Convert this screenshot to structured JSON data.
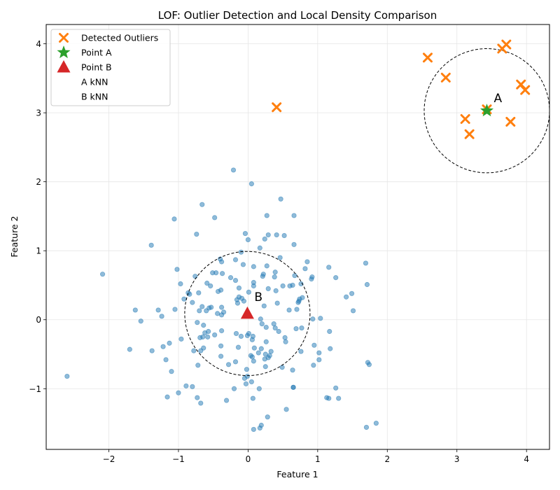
{
  "chart_data": {
    "type": "scatter",
    "title": "LOF: Outlier Detection and Local Density Comparison",
    "xlabel": "Feature 1",
    "ylabel": "Feature 2",
    "xlim": [
      -2.9,
      4.33
    ],
    "ylim": [
      -1.88,
      4.28
    ],
    "xticks": [
      -2,
      -1,
      0,
      1,
      2,
      3,
      4
    ],
    "yticks": [
      -1,
      0,
      1,
      2,
      3,
      4
    ],
    "xtick_labels": [
      "−2",
      "−1",
      "0",
      "1",
      "2",
      "3",
      "4"
    ],
    "ytick_labels": [
      "−1",
      "0",
      "1",
      "2",
      "3",
      "4"
    ],
    "grid": true,
    "legend": {
      "placement": "top-left",
      "entries": [
        {
          "label": "Detected Outliers",
          "marker": "x",
          "color": "#ff7f0e"
        },
        {
          "label": "Point A",
          "marker": "star",
          "color": "#2ca02c"
        },
        {
          "label": "Point B",
          "marker": "triangle",
          "color": "#d62728"
        },
        {
          "label": "A kNN",
          "marker": "none",
          "color": "#000000"
        },
        {
          "label": "B kNN",
          "marker": "none",
          "color": "#000000"
        }
      ]
    },
    "colors": {
      "inliers": "#1f77b4",
      "outliers": "#ff7f0e",
      "point_a": "#2ca02c",
      "point_b": "#d62728",
      "knn_circle": "#000000"
    },
    "point_a": {
      "x": 3.43,
      "y": 3.03,
      "label": "A"
    },
    "point_b": {
      "x": -0.01,
      "y": 0.09,
      "label": "B"
    },
    "knn_circles": [
      {
        "name": "A kNN",
        "cx": 3.43,
        "cy": 3.03,
        "r": 0.9
      },
      {
        "name": "B kNN",
        "cx": -0.01,
        "cy": 0.09,
        "r": 0.9
      }
    ],
    "outliers": [
      [
        0.41,
        3.08
      ],
      [
        2.58,
        3.8
      ],
      [
        2.84,
        3.51
      ],
      [
        3.12,
        2.91
      ],
      [
        3.18,
        2.69
      ],
      [
        3.43,
        3.05
      ],
      [
        3.65,
        3.93
      ],
      [
        3.71,
        3.99
      ],
      [
        3.77,
        2.87
      ],
      [
        3.92,
        3.41
      ],
      [
        3.98,
        3.33
      ]
    ],
    "inliers": [
      [
        -2.6,
        -0.82
      ],
      [
        -2.09,
        0.66
      ],
      [
        -1.7,
        -0.43
      ],
      [
        -1.62,
        0.14
      ],
      [
        -1.54,
        -0.02
      ],
      [
        -1.39,
        1.08
      ],
      [
        -1.38,
        -0.45
      ],
      [
        -1.29,
        0.14
      ],
      [
        -1.24,
        0.05
      ],
      [
        -1.22,
        -0.39
      ],
      [
        -1.18,
        -0.58
      ],
      [
        -1.16,
        -1.12
      ],
      [
        -1.13,
        -0.34
      ],
      [
        -1.1,
        -0.75
      ],
      [
        -1.06,
        1.46
      ],
      [
        -1.05,
        0.15
      ],
      [
        -1.02,
        0.73
      ],
      [
        -1.0,
        -1.06
      ],
      [
        -0.97,
        0.52
      ],
      [
        -0.96,
        -0.28
      ],
      [
        -0.92,
        0.3
      ],
      [
        -0.89,
        -0.96
      ],
      [
        -0.86,
        0.39
      ],
      [
        -0.84,
        0.37
      ],
      [
        -0.8,
        -0.97
      ],
      [
        -0.8,
        0.25
      ],
      [
        -0.78,
        -0.45
      ],
      [
        -0.76,
        0.63
      ],
      [
        -0.74,
        1.24
      ],
      [
        -0.73,
        -1.13
      ],
      [
        -0.73,
        -0.04
      ],
      [
        -0.72,
        -0.66
      ],
      [
        -0.71,
        0.39
      ],
      [
        -0.7,
        0.13
      ],
      [
        -0.69,
        -0.26
      ],
      [
        -0.68,
        -0.45
      ],
      [
        -0.68,
        -1.21
      ],
      [
        -0.66,
        1.67
      ],
      [
        -0.66,
        0.19
      ],
      [
        -0.65,
        -0.25
      ],
      [
        -0.64,
        -0.41
      ],
      [
        -0.64,
        -0.08
      ],
      [
        -0.62,
        -0.19
      ],
      [
        -0.6,
        0.13
      ],
      [
        -0.59,
        0.53
      ],
      [
        -0.58,
        -0.25
      ],
      [
        -0.57,
        -0.17
      ],
      [
        -0.56,
        0.17
      ],
      [
        -0.54,
        0.49
      ],
      [
        -0.53,
        0.18
      ],
      [
        -0.51,
        0.68
      ],
      [
        -0.48,
        1.48
      ],
      [
        -0.48,
        -0.22
      ],
      [
        -0.46,
        0.68
      ],
      [
        -0.44,
        0.09
      ],
      [
        -0.43,
        0.41
      ],
      [
        -0.4,
        0.88
      ],
      [
        -0.39,
        -0.38
      ],
      [
        -0.39,
        0.43
      ],
      [
        -0.39,
        -0.53
      ],
      [
        -0.38,
        0.07
      ],
      [
        -0.38,
        0.84
      ],
      [
        -0.38,
        0.18
      ],
      [
        -0.38,
        -0.16
      ],
      [
        -0.37,
        0.67
      ],
      [
        -0.35,
        0.11
      ],
      [
        -0.31,
        -1.17
      ],
      [
        -0.28,
        -0.65
      ],
      [
        -0.25,
        0.61
      ],
      [
        -0.21,
        2.17
      ],
      [
        -0.2,
        -1.0
      ],
      [
        -0.18,
        0.57
      ],
      [
        -0.18,
        -0.61
      ],
      [
        -0.18,
        0.87
      ],
      [
        -0.17,
        -0.2
      ],
      [
        -0.16,
        0.29
      ],
      [
        -0.15,
        0.24
      ],
      [
        -0.14,
        -0.4
      ],
      [
        -0.13,
        0.33
      ],
      [
        -0.13,
        0.46
      ],
      [
        -0.1,
        0.98
      ],
      [
        -0.1,
        -0.24
      ],
      [
        -0.09,
        0.31
      ],
      [
        -0.07,
        0.8
      ],
      [
        -0.06,
        0.27
      ],
      [
        -0.05,
        -0.85
      ],
      [
        -0.04,
        1.25
      ],
      [
        -0.03,
        -0.93
      ],
      [
        -0.02,
        -0.72
      ],
      [
        -0.01,
        -0.82
      ],
      [
        -0.01,
        -0.23
      ],
      [
        0.0,
        1.16
      ],
      [
        0.01,
        -0.2
      ],
      [
        0.01,
        0.4
      ],
      [
        0.04,
        -0.52
      ],
      [
        0.05,
        1.97
      ],
      [
        0.05,
        -0.9
      ],
      [
        0.06,
        -0.54
      ],
      [
        0.06,
        -0.29
      ],
      [
        0.07,
        -0.24
      ],
      [
        0.07,
        -1.14
      ],
      [
        0.08,
        0.54
      ],
      [
        0.08,
        -0.6
      ],
      [
        0.08,
        -1.59
      ],
      [
        0.08,
        0.49
      ],
      [
        0.08,
        0.77
      ],
      [
        0.09,
        -0.41
      ],
      [
        0.15,
        -0.48
      ],
      [
        0.16,
        -1.0
      ],
      [
        0.17,
        1.04
      ],
      [
        0.17,
        -1.57
      ],
      [
        0.18,
        0.01
      ],
      [
        0.19,
        -0.42
      ],
      [
        0.19,
        -1.53
      ],
      [
        0.2,
        -0.06
      ],
      [
        0.21,
        0.63
      ],
      [
        0.22,
        0.66
      ],
      [
        0.23,
        0.2
      ],
      [
        0.24,
        -0.57
      ],
      [
        0.24,
        1.17
      ],
      [
        0.25,
        -0.5
      ],
      [
        0.25,
        -0.68
      ],
      [
        0.26,
        -0.32
      ],
      [
        0.26,
        -0.11
      ],
      [
        0.27,
        1.51
      ],
      [
        0.27,
        0.78
      ],
      [
        0.28,
        -1.41
      ],
      [
        0.29,
        0.45
      ],
      [
        0.29,
        1.23
      ],
      [
        0.29,
        -0.55
      ],
      [
        0.31,
        -0.52
      ],
      [
        0.33,
        -0.46
      ],
      [
        0.37,
        -0.06
      ],
      [
        0.38,
        0.62
      ],
      [
        0.39,
        0.69
      ],
      [
        0.39,
        -0.12
      ],
      [
        0.4,
        0.42
      ],
      [
        0.41,
        1.23
      ],
      [
        0.42,
        0.24
      ],
      [
        0.44,
        -0.17
      ],
      [
        0.46,
        0.9
      ],
      [
        0.47,
        1.75
      ],
      [
        0.49,
        -0.69
      ],
      [
        0.5,
        0.49
      ],
      [
        0.52,
        1.22
      ],
      [
        0.53,
        -0.26
      ],
      [
        0.54,
        -0.32
      ],
      [
        0.55,
        -1.3
      ],
      [
        0.59,
        0.14
      ],
      [
        0.6,
        0.49
      ],
      [
        0.64,
        0.5
      ],
      [
        0.64,
        -0.73
      ],
      [
        0.65,
        -0.98
      ],
      [
        0.65,
        -0.98
      ],
      [
        0.66,
        1.09
      ],
      [
        0.66,
        1.51
      ],
      [
        0.67,
        0.64
      ],
      [
        0.69,
        -0.13
      ],
      [
        0.7,
        0.15
      ],
      [
        0.72,
        0.25
      ],
      [
        0.73,
        0.27
      ],
      [
        0.74,
        0.3
      ],
      [
        0.76,
        -0.46
      ],
      [
        0.76,
        0.52
      ],
      [
        0.77,
        -0.12
      ],
      [
        0.78,
        0.32
      ],
      [
        0.82,
        0.74
      ],
      [
        0.85,
        0.84
      ],
      [
        0.91,
        0.59
      ],
      [
        0.92,
        0.62
      ],
      [
        0.93,
        0.01
      ],
      [
        0.94,
        -0.66
      ],
      [
        0.95,
        -0.37
      ],
      [
        1.02,
        -0.48
      ],
      [
        1.02,
        -0.58
      ],
      [
        1.04,
        0.02
      ],
      [
        1.13,
        -1.13
      ],
      [
        1.16,
        -1.14
      ],
      [
        1.16,
        0.76
      ],
      [
        1.17,
        -0.17
      ],
      [
        1.18,
        -0.42
      ],
      [
        1.26,
        0.61
      ],
      [
        1.26,
        -0.99
      ],
      [
        1.3,
        -1.14
      ],
      [
        1.41,
        0.33
      ],
      [
        1.49,
        0.38
      ],
      [
        1.51,
        0.13
      ],
      [
        1.69,
        0.82
      ],
      [
        1.7,
        -1.56
      ],
      [
        1.71,
        0.51
      ],
      [
        1.72,
        -0.62
      ],
      [
        1.74,
        -0.65
      ],
      [
        1.84,
        -1.5
      ]
    ]
  }
}
